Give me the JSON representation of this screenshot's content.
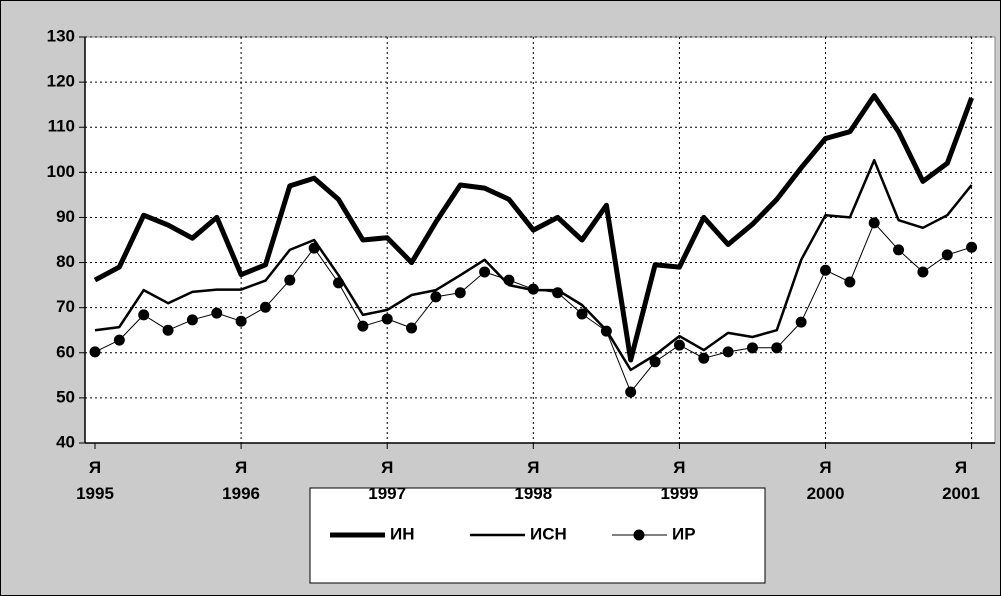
{
  "chart_data": {
    "type": "line",
    "categories": [
      "Я\n1995",
      null,
      null,
      null,
      null,
      null,
      "Я\n1996",
      null,
      null,
      null,
      null,
      null,
      "Я\n1997",
      null,
      null,
      null,
      null,
      null,
      "Я\n1998",
      null,
      null,
      null,
      null,
      null,
      "Я\n1999",
      null,
      null,
      null,
      null,
      null,
      "Я\n2000",
      null,
      null,
      null,
      null,
      null,
      "Я\n2001"
    ],
    "series": [
      {
        "name": "ИН",
        "color": "#000000",
        "values": [
          76.1,
          79,
          90.5,
          88.3,
          85.4,
          90,
          77.3,
          79.5,
          97,
          98.7,
          94,
          85,
          85.5,
          80,
          89,
          97.2,
          96.5,
          94,
          87.2,
          90,
          85,
          92.7,
          58.4,
          79.5,
          79,
          90,
          84,
          88.5,
          94,
          101,
          107.5,
          109,
          117,
          109,
          98,
          102,
          116.5
        ]
      },
      {
        "name": "ИСН",
        "color": "#000000",
        "values": [
          65,
          65.7,
          73.9,
          71,
          73.5,
          74,
          74,
          76,
          82.8,
          85,
          77.2,
          68.4,
          69.5,
          72.8,
          73.9,
          77.2,
          80.6,
          75,
          73.9,
          73.9,
          70.6,
          65,
          56.2,
          59.5,
          63.7,
          60.6,
          64.4,
          63.5,
          65,
          80.6,
          90.5,
          90,
          102.7,
          89.4,
          87.7,
          90.5,
          97.2
        ]
      },
      {
        "name": "ИР",
        "color": "#000000",
        "values": [
          60.2,
          62.8,
          68.4,
          65,
          67.3,
          68.8,
          67,
          70.1,
          76.1,
          83.2,
          75.5,
          65.9,
          67.5,
          65.5,
          72.4,
          73.3,
          77.9,
          76.1,
          74.1,
          73.3,
          68.6,
          64.8,
          51.3,
          58,
          61.7,
          58.8,
          60.2,
          61.1,
          61.1,
          66.8,
          78.3,
          75.7,
          88.8,
          82.8,
          77.9,
          81.7,
          83.4
        ]
      }
    ],
    "ylim": [
      40,
      130
    ],
    "yticks": [
      40,
      50,
      60,
      70,
      80,
      90,
      100,
      110,
      120,
      130
    ],
    "grid": true,
    "legend": "bottom"
  }
}
